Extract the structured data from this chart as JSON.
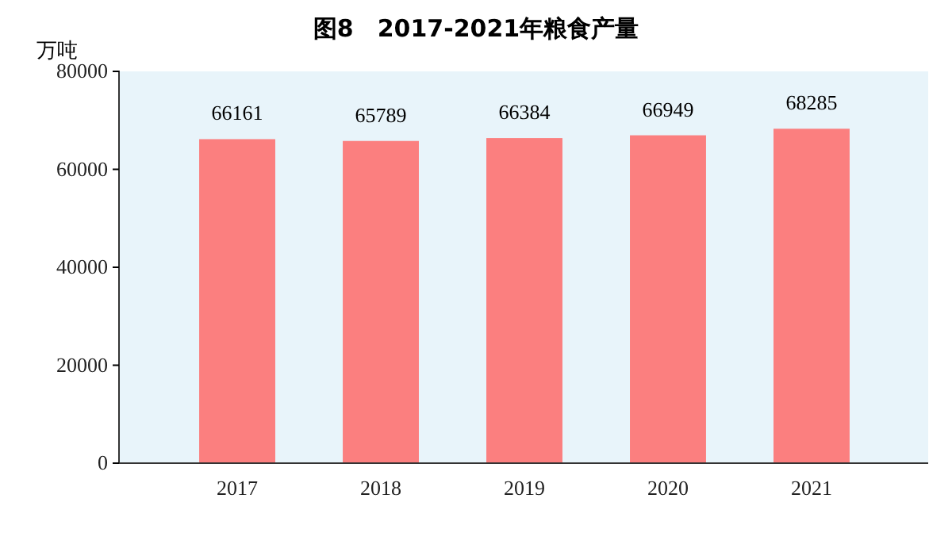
{
  "chart_data": {
    "type": "bar",
    "title": "图8　2017-2021年粮食产量",
    "ylabel": "万吨",
    "categories": [
      "2017",
      "2018",
      "2019",
      "2020",
      "2021"
    ],
    "values": [
      66161,
      65789,
      66384,
      66949,
      68285
    ],
    "color": "#fb7f7f",
    "ylim": [
      0,
      80000
    ],
    "yticks": [
      0,
      20000,
      40000,
      60000,
      80000
    ],
    "data_labels": true,
    "grid": false
  }
}
